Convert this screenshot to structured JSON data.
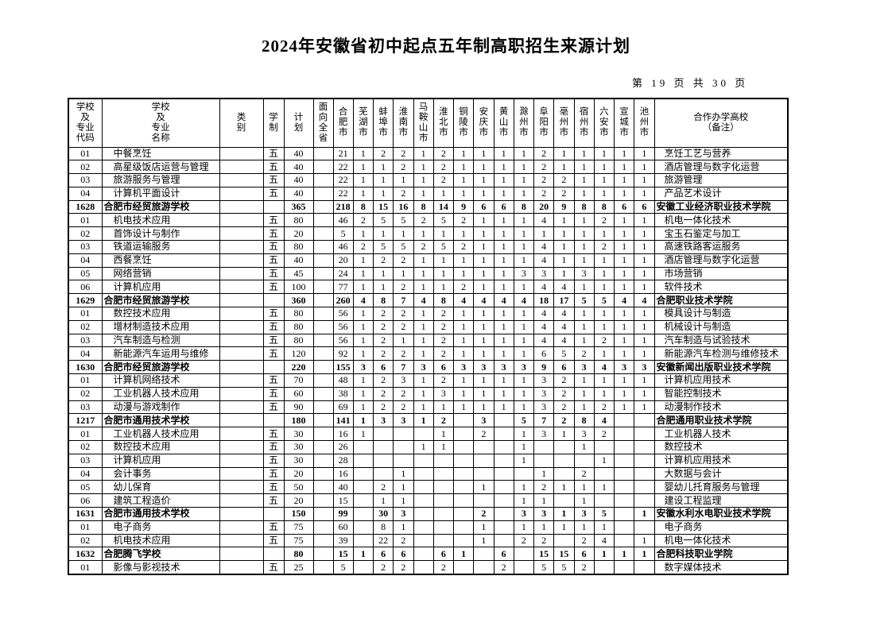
{
  "title": "2024年安徽省初中起点五年制高职招生来源计划",
  "page_info": "第 19 页 共 30 页",
  "page_number": "19",
  "total_pages": "30",
  "table": {
    "column_headers": {
      "code": "学校\n及\n专业\n代码",
      "name": "学校\n及\n专业\n名称",
      "category": "类\n别",
      "duration": "学\n制",
      "plan": "计\n划",
      "province_wide": "面向全省",
      "cities": [
        "合肥市",
        "芜湖市",
        "蚌埠市",
        "淮南市",
        "马鞍山市",
        "淮北市",
        "铜陵市",
        "安庆市",
        "黄山市",
        "滁州市",
        "阜阳市",
        "亳州市",
        "宿州市",
        "六安市",
        "宣城市",
        "池州市"
      ],
      "remark": "合作办学高校\n（备注）"
    },
    "rows": [
      {
        "type": "major",
        "code": "01",
        "name": "中餐烹饪",
        "category": "",
        "duration": "五",
        "plan": "40",
        "province": "",
        "cities": [
          "21",
          "1",
          "2",
          "2",
          "1",
          "2",
          "1",
          "1",
          "1",
          "1",
          "2",
          "1",
          "1",
          "1",
          "1",
          "1"
        ],
        "remark": "烹饪工艺与营养"
      },
      {
        "type": "major",
        "code": "02",
        "name": "高星级饭店运营与管理",
        "category": "",
        "duration": "五",
        "plan": "40",
        "province": "",
        "cities": [
          "22",
          "1",
          "1",
          "2",
          "1",
          "2",
          "1",
          "1",
          "1",
          "1",
          "2",
          "1",
          "1",
          "1",
          "1",
          "1"
        ],
        "remark": "酒店管理与数字化运营"
      },
      {
        "type": "major",
        "code": "03",
        "name": "旅游服务与管理",
        "category": "",
        "duration": "五",
        "plan": "40",
        "province": "",
        "cities": [
          "22",
          "1",
          "1",
          "1",
          "1",
          "2",
          "1",
          "1",
          "1",
          "1",
          "2",
          "2",
          "1",
          "1",
          "1",
          "1"
        ],
        "remark": "旅游管理"
      },
      {
        "type": "major",
        "code": "04",
        "name": "计算机平面设计",
        "category": "",
        "duration": "五",
        "plan": "40",
        "province": "",
        "cities": [
          "22",
          "1",
          "1",
          "2",
          "1",
          "1",
          "1",
          "1",
          "1",
          "1",
          "2",
          "2",
          "1",
          "1",
          "1",
          "1"
        ],
        "remark": "产品艺术设计"
      },
      {
        "type": "school",
        "code": "1628",
        "name": "合肥市经贸旅游学校",
        "category": "",
        "duration": "",
        "plan": "365",
        "province": "",
        "cities": [
          "218",
          "8",
          "15",
          "16",
          "8",
          "14",
          "9",
          "6",
          "6",
          "8",
          "20",
          "9",
          "8",
          "8",
          "6",
          "6"
        ],
        "remark": "安徽工业经济职业技术学院"
      },
      {
        "type": "major",
        "code": "01",
        "name": "机电技术应用",
        "category": "",
        "duration": "五",
        "plan": "80",
        "province": "",
        "cities": [
          "46",
          "2",
          "5",
          "5",
          "2",
          "5",
          "2",
          "1",
          "1",
          "1",
          "4",
          "1",
          "1",
          "2",
          "1",
          "1"
        ],
        "remark": "机电一体化技术"
      },
      {
        "type": "major",
        "code": "02",
        "name": "首饰设计与制作",
        "category": "",
        "duration": "五",
        "plan": "20",
        "province": "",
        "cities": [
          "5",
          "1",
          "1",
          "1",
          "1",
          "1",
          "1",
          "1",
          "1",
          "1",
          "1",
          "1",
          "1",
          "1",
          "1",
          "1"
        ],
        "remark": "宝玉石鉴定与加工"
      },
      {
        "type": "major",
        "code": "03",
        "name": "铁道运输服务",
        "category": "",
        "duration": "五",
        "plan": "80",
        "province": "",
        "cities": [
          "46",
          "2",
          "5",
          "5",
          "2",
          "5",
          "2",
          "1",
          "1",
          "1",
          "4",
          "1",
          "1",
          "2",
          "1",
          "1"
        ],
        "remark": "高速铁路客运服务"
      },
      {
        "type": "major",
        "code": "04",
        "name": "西餐烹饪",
        "category": "",
        "duration": "五",
        "plan": "40",
        "province": "",
        "cities": [
          "20",
          "1",
          "2",
          "2",
          "1",
          "1",
          "1",
          "1",
          "1",
          "1",
          "4",
          "1",
          "1",
          "1",
          "1",
          "1"
        ],
        "remark": "酒店管理与数字化运营"
      },
      {
        "type": "major",
        "code": "05",
        "name": "网络营销",
        "category": "",
        "duration": "五",
        "plan": "45",
        "province": "",
        "cities": [
          "24",
          "1",
          "1",
          "1",
          "1",
          "1",
          "1",
          "1",
          "1",
          "3",
          "3",
          "1",
          "3",
          "1",
          "1",
          "1"
        ],
        "remark": "市场营销"
      },
      {
        "type": "major",
        "code": "06",
        "name": "计算机应用",
        "category": "",
        "duration": "五",
        "plan": "100",
        "province": "",
        "cities": [
          "77",
          "1",
          "1",
          "2",
          "1",
          "1",
          "2",
          "1",
          "1",
          "1",
          "4",
          "4",
          "1",
          "1",
          "1",
          "1"
        ],
        "remark": "软件技术"
      },
      {
        "type": "school",
        "code": "1629",
        "name": "合肥市经贸旅游学校",
        "category": "",
        "duration": "",
        "plan": "360",
        "province": "",
        "cities": [
          "260",
          "4",
          "8",
          "7",
          "4",
          "8",
          "4",
          "4",
          "4",
          "4",
          "18",
          "17",
          "5",
          "5",
          "4",
          "4"
        ],
        "remark": "合肥职业技术学院"
      },
      {
        "type": "major",
        "code": "01",
        "name": "数控技术应用",
        "category": "",
        "duration": "五",
        "plan": "80",
        "province": "",
        "cities": [
          "56",
          "1",
          "2",
          "2",
          "1",
          "2",
          "1",
          "1",
          "1",
          "1",
          "4",
          "4",
          "1",
          "1",
          "1",
          "1"
        ],
        "remark": "模具设计与制造"
      },
      {
        "type": "major",
        "code": "02",
        "name": "增材制造技术应用",
        "category": "",
        "duration": "五",
        "plan": "80",
        "province": "",
        "cities": [
          "56",
          "1",
          "2",
          "2",
          "1",
          "2",
          "1",
          "1",
          "1",
          "1",
          "4",
          "4",
          "1",
          "1",
          "1",
          "1"
        ],
        "remark": "机械设计与制造"
      },
      {
        "type": "major",
        "code": "03",
        "name": "汽车制造与检测",
        "category": "",
        "duration": "五",
        "plan": "80",
        "province": "",
        "cities": [
          "56",
          "1",
          "2",
          "1",
          "1",
          "2",
          "1",
          "1",
          "1",
          "1",
          "4",
          "4",
          "1",
          "2",
          "1",
          "1"
        ],
        "remark": "汽车制造与试验技术"
      },
      {
        "type": "major",
        "code": "04",
        "name": "新能源汽车运用与维修",
        "category": "",
        "duration": "五",
        "plan": "120",
        "province": "",
        "cities": [
          "92",
          "1",
          "2",
          "2",
          "1",
          "2",
          "1",
          "1",
          "1",
          "1",
          "6",
          "5",
          "2",
          "1",
          "1",
          "1"
        ],
        "remark": "新能源汽车检测与维修技术"
      },
      {
        "type": "school",
        "code": "1630",
        "name": "合肥市经贸旅游学校",
        "category": "",
        "duration": "",
        "plan": "220",
        "province": "",
        "cities": [
          "155",
          "3",
          "6",
          "7",
          "3",
          "6",
          "3",
          "3",
          "3",
          "3",
          "9",
          "6",
          "3",
          "4",
          "3",
          "3"
        ],
        "remark": "安徽新闻出版职业技术学院"
      },
      {
        "type": "major",
        "code": "01",
        "name": "计算机网络技术",
        "category": "",
        "duration": "五",
        "plan": "70",
        "province": "",
        "cities": [
          "48",
          "1",
          "2",
          "3",
          "1",
          "2",
          "1",
          "1",
          "1",
          "1",
          "3",
          "2",
          "1",
          "1",
          "1",
          "1"
        ],
        "remark": "计算机应用技术"
      },
      {
        "type": "major",
        "code": "02",
        "name": "工业机器人技术应用",
        "category": "",
        "duration": "五",
        "plan": "60",
        "province": "",
        "cities": [
          "38",
          "1",
          "2",
          "2",
          "1",
          "3",
          "1",
          "1",
          "1",
          "1",
          "3",
          "2",
          "1",
          "1",
          "1",
          "1"
        ],
        "remark": "智能控制技术"
      },
      {
        "type": "major",
        "code": "03",
        "name": "动漫与游戏制作",
        "category": "",
        "duration": "五",
        "plan": "90",
        "province": "",
        "cities": [
          "69",
          "1",
          "2",
          "2",
          "1",
          "1",
          "1",
          "1",
          "1",
          "1",
          "3",
          "2",
          "1",
          "2",
          "1",
          "1"
        ],
        "remark": "动漫制作技术"
      },
      {
        "type": "school",
        "code": "1217",
        "name": "合肥市通用技术学校",
        "category": "",
        "duration": "",
        "plan": "180",
        "province": "",
        "cities": [
          "141",
          "1",
          "3",
          "3",
          "1",
          "2",
          "",
          "3",
          "",
          "5",
          "7",
          "2",
          "8",
          "4",
          "",
          ""
        ],
        "remark": "合肥通用职业技术学院"
      },
      {
        "type": "major",
        "code": "01",
        "name": "工业机器人技术应用",
        "category": "",
        "duration": "五",
        "plan": "30",
        "province": "",
        "cities": [
          "16",
          "1",
          "",
          "",
          "",
          "1",
          "",
          "2",
          "",
          "1",
          "3",
          "1",
          "3",
          "2",
          "",
          ""
        ],
        "remark": "工业机器人技术"
      },
      {
        "type": "major",
        "code": "02",
        "name": "数控技术应用",
        "category": "",
        "duration": "五",
        "plan": "30",
        "province": "",
        "cities": [
          "26",
          "",
          "",
          "",
          "1",
          "1",
          "",
          "",
          "",
          "1",
          "",
          "",
          "1",
          "",
          "",
          ""
        ],
        "remark": "数控技术"
      },
      {
        "type": "major",
        "code": "03",
        "name": "计算机应用",
        "category": "",
        "duration": "五",
        "plan": "30",
        "province": "",
        "cities": [
          "28",
          "",
          "",
          "",
          "",
          "",
          "",
          "",
          "",
          "1",
          "",
          "",
          "",
          "1",
          "",
          ""
        ],
        "remark": "计算机应用技术"
      },
      {
        "type": "major",
        "code": "04",
        "name": "会计事务",
        "category": "",
        "duration": "五",
        "plan": "20",
        "province": "",
        "cities": [
          "16",
          "",
          "",
          "1",
          "",
          "",
          "",
          "",
          "",
          "",
          "1",
          "",
          "2",
          "",
          "",
          ""
        ],
        "remark": "大数据与会计"
      },
      {
        "type": "major",
        "code": "05",
        "name": "幼儿保育",
        "category": "",
        "duration": "五",
        "plan": "50",
        "province": "",
        "cities": [
          "40",
          "",
          "2",
          "1",
          "",
          "",
          "",
          "1",
          "",
          "1",
          "2",
          "1",
          "1",
          "1",
          "",
          ""
        ],
        "remark": "婴幼儿托育服务与管理"
      },
      {
        "type": "major",
        "code": "06",
        "name": "建筑工程造价",
        "category": "",
        "duration": "五",
        "plan": "20",
        "province": "",
        "cities": [
          "15",
          "",
          "1",
          "1",
          "",
          "",
          "",
          "",
          "",
          "1",
          "1",
          "",
          "1",
          "",
          "",
          ""
        ],
        "remark": "建设工程监理"
      },
      {
        "type": "school",
        "code": "1631",
        "name": "合肥市通用技术学校",
        "category": "",
        "duration": "",
        "plan": "150",
        "province": "",
        "cities": [
          "99",
          "",
          "30",
          "3",
          "",
          "",
          "",
          "2",
          "",
          "3",
          "3",
          "1",
          "3",
          "5",
          "",
          "1"
        ],
        "remark": "安徽水利水电职业技术学院"
      },
      {
        "type": "major",
        "code": "01",
        "name": "电子商务",
        "category": "",
        "duration": "五",
        "plan": "75",
        "province": "",
        "cities": [
          "60",
          "",
          "8",
          "1",
          "",
          "",
          "",
          "1",
          "",
          "1",
          "1",
          "1",
          "1",
          "1",
          "",
          ""
        ],
        "remark": "电子商务"
      },
      {
        "type": "major",
        "code": "02",
        "name": "机电技术应用",
        "category": "",
        "duration": "五",
        "plan": "75",
        "province": "",
        "cities": [
          "39",
          "",
          "22",
          "2",
          "",
          "",
          "",
          "1",
          "",
          "2",
          "2",
          "",
          "2",
          "4",
          "",
          "1"
        ],
        "remark": "机电一体化技术"
      },
      {
        "type": "school",
        "code": "1632",
        "name": "合肥腾飞学校",
        "category": "",
        "duration": "",
        "plan": "80",
        "province": "",
        "cities": [
          "15",
          "1",
          "6",
          "6",
          "",
          "6",
          "1",
          "",
          "6",
          "",
          "15",
          "15",
          "6",
          "1",
          "1",
          "1"
        ],
        "remark": "合肥科技职业学院"
      },
      {
        "type": "major",
        "code": "01",
        "name": "影像与影视技术",
        "category": "",
        "duration": "五",
        "plan": "25",
        "province": "",
        "cities": [
          "5",
          "",
          "2",
          "2",
          "",
          "2",
          "",
          "",
          "2",
          "",
          "5",
          "5",
          "2",
          "",
          "",
          ""
        ],
        "remark": "数字媒体技术"
      }
    ]
  }
}
